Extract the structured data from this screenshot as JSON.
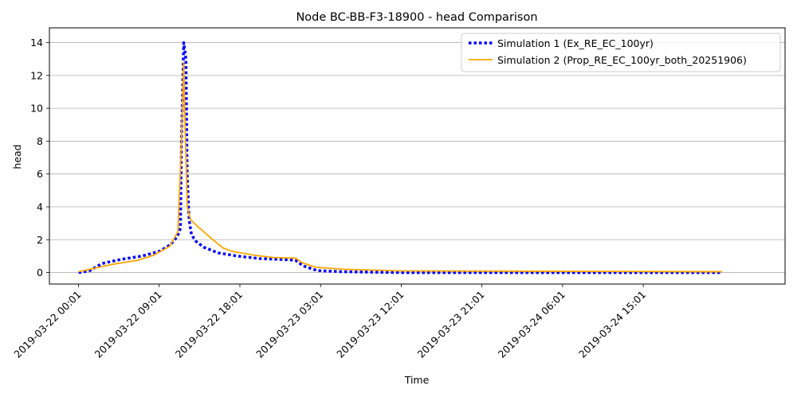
{
  "chart_data": {
    "type": "line",
    "title": "Node BC-BB-F3-18900 - head Comparison",
    "xlabel": "Time",
    "ylabel": "head",
    "xlim": [
      "2019-03-21 20:46",
      "2019-03-25 06:50"
    ],
    "ylim": [
      -0.7,
      14.9
    ],
    "x_ticks": [
      "2019-03-22 00:01",
      "2019-03-22 09:01",
      "2019-03-22 18:01",
      "2019-03-23 03:01",
      "2019-03-23 12:01",
      "2019-03-23 21:01",
      "2019-03-24 06:01",
      "2019-03-24 15:01"
    ],
    "y_ticks": [
      0,
      2,
      4,
      6,
      8,
      10,
      12,
      14
    ],
    "grid": "horizontal",
    "legend_position": "upper-right",
    "series": [
      {
        "name": "Simulation 1 (Ex_RE_EC_100yr)",
        "color": "#0000ff",
        "style": "dotted",
        "x": [
          "2019-03-22 00:01",
          "2019-03-22 01:13",
          "2019-03-22 02:38",
          "2019-03-22 04:44",
          "2019-03-22 07:05",
          "2019-03-22 09:04",
          "2019-03-22 10:17",
          "2019-03-22 11:03",
          "2019-03-22 11:23",
          "2019-03-22 11:30",
          "2019-03-22 11:45",
          "2019-03-22 12:00",
          "2019-03-22 12:08",
          "2019-03-22 12:21",
          "2019-03-22 12:37",
          "2019-03-22 13:07",
          "2019-03-22 13:58",
          "2019-03-22 15:35",
          "2019-03-22 17:48",
          "2019-03-22 20:12",
          "2019-03-22 22:29",
          "2019-03-23 00:13",
          "2019-03-23 01:06",
          "2019-03-23 02:39",
          "2019-03-23 05:31",
          "2019-03-23 12:00",
          "2019-03-24 23:48"
        ],
        "y": [
          0.0,
          0.1,
          0.55,
          0.8,
          1.0,
          1.3,
          1.7,
          2.2,
          2.7,
          8.0,
          14.0,
          13.0,
          6.0,
          3.2,
          2.3,
          1.9,
          1.55,
          1.2,
          1.0,
          0.85,
          0.8,
          0.75,
          0.4,
          0.12,
          0.05,
          0.0,
          0.0
        ]
      },
      {
        "name": "Simulation 2 (Prop_RE_EC_100yr_both_20251906)",
        "color": "#ffa500",
        "style": "solid",
        "x": [
          "2019-03-22 00:01",
          "2019-03-22 03:48",
          "2019-03-22 06:37",
          "2019-03-22 08:22",
          "2019-03-22 10:12",
          "2019-03-22 11:06",
          "2019-03-22 11:30",
          "2019-03-22 11:45",
          "2019-03-22 11:54",
          "2019-03-22 12:09",
          "2019-03-22 12:32",
          "2019-03-22 13:20",
          "2019-03-22 14:47",
          "2019-03-22 16:08",
          "2019-03-22 17:05",
          "2019-03-22 19:40",
          "2019-03-22 21:45",
          "2019-03-23 00:13",
          "2019-03-23 00:57",
          "2019-03-23 02:28",
          "2019-03-23 05:31",
          "2019-03-23 12:00",
          "2019-03-24 23:48"
        ],
        "y": [
          0.05,
          0.5,
          0.75,
          1.05,
          1.6,
          2.5,
          8.0,
          12.8,
          9.0,
          4.0,
          3.2,
          2.8,
          2.1,
          1.5,
          1.3,
          1.05,
          0.92,
          0.88,
          0.6,
          0.32,
          0.2,
          0.1,
          0.05
        ]
      }
    ]
  }
}
